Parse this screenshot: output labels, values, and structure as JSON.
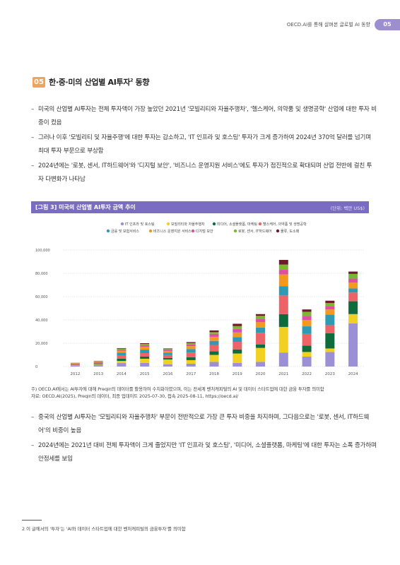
{
  "header": {
    "text": "OECD.AI를 통해 살펴본 글로벌 AI 동향",
    "page_num": "05"
  },
  "section": {
    "num": "05",
    "title": "한·중·미의 산업별 AI투자",
    "sup": "2",
    "title_tail": " 동향"
  },
  "bullets1": [
    "미국의 산업별 AI투자는 전체 투자액이 가장 높았던 2021년 '모빌리티와 자율주행차', '헬스케어, 의약품 및 생명공학' 산업에 대한 투자 비중이 컸음",
    "그러나 이후 '모빌리티 및 자율주행'에 대한 투자는 감소하고, 'IT 인프라 및 호스팅' 투자가 크게 증가하여 2024년 370억 달러를 넘기며 최대 투자 부문으로 부상함",
    "2024년에는 '로봇, 센서, IT하드웨어'와 '디지털 보안', '비즈니스 운영지원 서비스'에도 투자가 점진적으로 확대되며 산업 전반에 걸친 투자 다변화가 나타남"
  ],
  "figure": {
    "title": "[그림 3]  미국의 산업별 AI투자 금액 추이",
    "unit": "(단위: 백만 US$)"
  },
  "chart_data": {
    "type": "bar",
    "stacked": true,
    "categories": [
      "2012",
      "2013",
      "2014",
      "2015",
      "2016",
      "2017",
      "2018",
      "2019",
      "2020",
      "2021",
      "2022",
      "2023",
      "2024"
    ],
    "ylim": [
      0,
      100000
    ],
    "yticks": [
      "0",
      "20,000",
      "40,000",
      "60,000",
      "80,000",
      "100,000"
    ],
    "grid": true,
    "legend_position": "top",
    "series": [
      {
        "name": "IT 인프라 및 호스팅",
        "color": "#9b8fd6",
        "values": [
          900,
          1300,
          3000,
          3200,
          2000,
          2500,
          4000,
          3200,
          4000,
          12000,
          8500,
          12500,
          37000
        ]
      },
      {
        "name": "모빌리티와 자율주행차",
        "color": "#f2d022",
        "values": [
          300,
          400,
          1800,
          3500,
          4000,
          3000,
          6000,
          8000,
          12000,
          22000,
          4000,
          3000,
          8000
        ]
      },
      {
        "name": "미디어, 소셜플랫폼, 마케팅",
        "color": "#0d6b3c",
        "values": [
          200,
          400,
          2000,
          1800,
          1300,
          2500,
          3000,
          3500,
          3000,
          11000,
          5500,
          13000,
          11000
        ]
      },
      {
        "name": "헬스케어, 의약품 및 생명공학",
        "color": "#ec6468",
        "values": [
          500,
          700,
          2500,
          3000,
          2500,
          4000,
          5500,
          6500,
          10000,
          16000,
          10000,
          7000,
          7500
        ]
      },
      {
        "name": "금융 및 보험서비스",
        "color": "#2e9ab4",
        "values": [
          500,
          800,
          2500,
          3000,
          2000,
          3000,
          3500,
          4000,
          4500,
          8000,
          6500,
          9000,
          3500
        ]
      },
      {
        "name": "비즈니스 운영지원 서비스",
        "color": "#f39a1e",
        "values": [
          300,
          500,
          1800,
          2500,
          1500,
          2500,
          3500,
          4000,
          4500,
          10000,
          5500,
          4500,
          5000
        ]
      },
      {
        "name": "디지털 보안",
        "color": "#de4fa0",
        "values": [
          200,
          300,
          1000,
          1300,
          900,
          1500,
          2500,
          3000,
          3000,
          4000,
          3500,
          3000,
          3500
        ]
      },
      {
        "name": "로봇, 센서, IT하드웨어",
        "color": "#79b92f",
        "values": [
          200,
          300,
          700,
          1000,
          800,
          1200,
          1500,
          2500,
          2500,
          4500,
          3500,
          2500,
          4000
        ]
      },
      {
        "name": "물류, 도소매",
        "color": "#6e1a2a",
        "values": [
          100,
          200,
          500,
          700,
          500,
          800,
          1500,
          2000,
          1500,
          4000,
          2000,
          2000,
          2000
        ]
      }
    ]
  },
  "notes": [
    "주) OECD.AI에서는 AI투자에 대해 Preqin의 데이터를 활용하여 수치화하였으며, 이는 전세계 벤처캐피털의 AI 및 데이터 스타트업에 대한 금융 투자를 의미함",
    "자료: OECD.AI(2025), Preqin의 데이터, 최종 업데이트 2025-07-30, 접속 2025-08-11, https://oecd.ai/"
  ],
  "bullets2": [
    "중국의 산업별 AI투자는 '모빌리티와 자율주행차' 부문이 전반적으로 가장 큰 투자 비중을 차지하며, 그다음으로는 '로봇, 센서, IT하드웨어'의 비중이 높음",
    "2024년에는 2021년 대비 전체 투자액이 크게 줄었지만 'IT 인프라 및 호스팅', '미디어, 소셜플랫폼, 마케팅'에 대한 투자는 소폭 증가하며 안정세를 보임"
  ],
  "footnote": "2 이 글에서의 '투자'는 'AI와 데이터 스타트업에 대한 벤처캐피털의 금융투자'를 의미함"
}
